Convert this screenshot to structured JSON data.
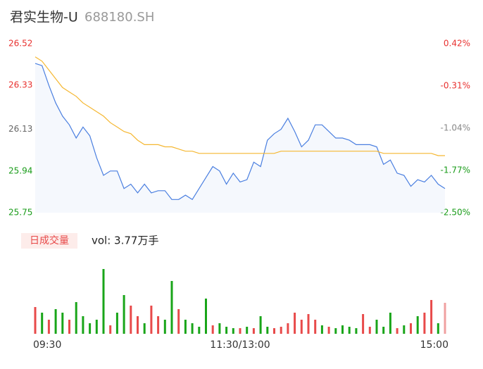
{
  "header": {
    "title": "君实生物-U",
    "code": "688180.SH"
  },
  "chart_data": [
    {
      "type": "line",
      "x": [
        0,
        4,
        8,
        12,
        16,
        20,
        24,
        28,
        32,
        36,
        40,
        44,
        48,
        52,
        56,
        60,
        64,
        68,
        72,
        76,
        80,
        84,
        88,
        92,
        96,
        100,
        104,
        108,
        112,
        116,
        120,
        124,
        128,
        132,
        136,
        140,
        144,
        148,
        152,
        156,
        160,
        164,
        168,
        172,
        176,
        180,
        184,
        188,
        192,
        196,
        200,
        204,
        208,
        212,
        216,
        220,
        224,
        228,
        232,
        236,
        240
      ],
      "xlim": [
        0,
        240
      ],
      "xticks": [
        {
          "value": 0,
          "label": "09:30"
        },
        {
          "value": 120,
          "label": "11:30/13:00"
        },
        {
          "value": 240,
          "label": "15:00"
        }
      ],
      "series": [
        {
          "name": "price",
          "color": "#4a7fe0",
          "values": [
            26.43,
            26.42,
            26.33,
            26.25,
            26.19,
            26.15,
            26.09,
            26.14,
            26.1,
            26.0,
            25.92,
            25.94,
            25.94,
            25.86,
            25.88,
            25.84,
            25.88,
            25.84,
            25.85,
            25.85,
            25.81,
            25.81,
            25.83,
            25.81,
            25.86,
            25.91,
            25.96,
            25.94,
            25.88,
            25.93,
            25.89,
            25.9,
            25.98,
            25.96,
            26.08,
            26.11,
            26.13,
            26.18,
            26.12,
            26.05,
            26.08,
            26.15,
            26.15,
            26.12,
            26.09,
            26.09,
            26.08,
            26.06,
            26.06,
            26.06,
            26.05,
            25.97,
            25.99,
            25.93,
            25.92,
            25.87,
            25.9,
            25.89,
            25.92,
            25.88,
            25.86
          ]
        },
        {
          "name": "average",
          "color": "#f5b731",
          "values": [
            26.46,
            26.44,
            26.4,
            26.36,
            26.32,
            26.3,
            26.28,
            26.25,
            26.23,
            26.21,
            26.19,
            26.16,
            26.14,
            26.12,
            26.11,
            26.08,
            26.06,
            26.06,
            26.06,
            26.05,
            26.05,
            26.04,
            26.03,
            26.03,
            26.02,
            26.02,
            26.02,
            26.02,
            26.02,
            26.02,
            26.02,
            26.02,
            26.02,
            26.02,
            26.02,
            26.02,
            26.03,
            26.03,
            26.03,
            26.03,
            26.03,
            26.03,
            26.03,
            26.03,
            26.03,
            26.03,
            26.03,
            26.03,
            26.03,
            26.03,
            26.03,
            26.02,
            26.02,
            26.02,
            26.02,
            26.02,
            26.02,
            26.02,
            26.02,
            26.01,
            26.01
          ]
        }
      ],
      "ylim": [
        25.75,
        26.52
      ],
      "yticks": [
        26.52,
        26.33,
        26.13,
        25.94,
        25.75
      ],
      "ytick_colors": [
        "#e8312f",
        "#e8312f",
        "#666666",
        "#1a9c1a",
        "#1a9c1a"
      ],
      "y2lim": [
        -2.5,
        0.42
      ],
      "y2ticks": [
        {
          "value": 0.42,
          "label": "0.42%"
        },
        {
          "value": -0.31,
          "label": "-0.31%"
        },
        {
          "value": -1.04,
          "label": "-1.04%"
        },
        {
          "value": -1.77,
          "label": "-1.77%"
        },
        {
          "value": -2.5,
          "label": "-2.50%"
        }
      ],
      "y2tick_colors": [
        "#e8312f",
        "#e8312f",
        "#888888",
        "#1a9c1a",
        "#1a9c1a"
      ]
    },
    {
      "type": "bar",
      "legend_button": "日成交量",
      "annotation": "vol: 3.77万手",
      "x": [
        0,
        4,
        8,
        12,
        16,
        20,
        24,
        28,
        32,
        36,
        40,
        44,
        48,
        52,
        56,
        60,
        64,
        68,
        72,
        76,
        80,
        84,
        88,
        92,
        96,
        100,
        104,
        108,
        112,
        116,
        120,
        124,
        128,
        132,
        136,
        140,
        144,
        148,
        152,
        156,
        160,
        164,
        168,
        172,
        176,
        180,
        184,
        188,
        192,
        196,
        200,
        204,
        208,
        212,
        216,
        220,
        224,
        228,
        232,
        236,
        240
      ],
      "xlim": [
        0,
        240
      ],
      "ylim": [
        0,
        100
      ],
      "values": [
        38,
        30,
        20,
        35,
        30,
        20,
        45,
        25,
        15,
        20,
        92,
        12,
        30,
        55,
        40,
        25,
        15,
        40,
        25,
        20,
        75,
        35,
        20,
        15,
        10,
        50,
        12,
        15,
        10,
        8,
        8,
        10,
        8,
        25,
        10,
        8,
        10,
        15,
        30,
        20,
        28,
        20,
        12,
        10,
        8,
        12,
        10,
        8,
        28,
        10,
        20,
        10,
        30,
        8,
        12,
        15,
        25,
        30,
        48,
        15,
        44
      ],
      "colors": [
        "#e84a4a",
        "#19a519",
        "#e84a4a",
        "#19a519",
        "#19a519",
        "#e84a4a",
        "#19a519",
        "#19a519",
        "#19a519",
        "#19a519",
        "#19a519",
        "#e84a4a",
        "#19a519",
        "#19a519",
        "#e84a4a",
        "#e84a4a",
        "#19a519",
        "#e84a4a",
        "#e84a4a",
        "#19a519",
        "#19a519",
        "#e84a4a",
        "#19a519",
        "#19a519",
        "#19a519",
        "#19a519",
        "#e84a4a",
        "#19a519",
        "#19a519",
        "#19a519",
        "#e84a4a",
        "#19a519",
        "#e84a4a",
        "#19a519",
        "#19a519",
        "#e84a4a",
        "#e84a4a",
        "#e84a4a",
        "#e84a4a",
        "#e84a4a",
        "#e84a4a",
        "#e84a4a",
        "#19a519",
        "#e84a4a",
        "#19a519",
        "#19a519",
        "#19a519",
        "#19a519",
        "#e84a4a",
        "#e84a4a",
        "#19a519",
        "#19a519",
        "#19a519",
        "#e84a4a",
        "#19a519",
        "#e84a4a",
        "#19a519",
        "#e84a4a",
        "#e84a4a",
        "#19a519",
        "#f0a0a0"
      ]
    }
  ]
}
